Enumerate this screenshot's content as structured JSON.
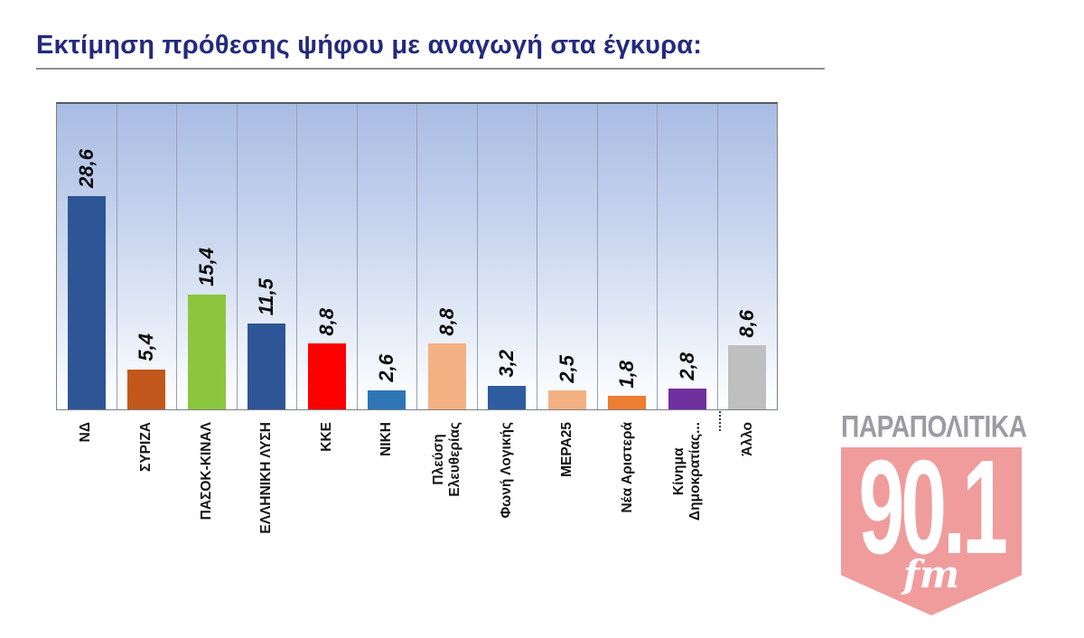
{
  "header": {
    "title": "Εκτίμηση πρόθεσης ψήφου με αναγωγή στα έγκυρα:",
    "title_color": "#232a7d",
    "underline_color": "#8f8f8f"
  },
  "chart_data": {
    "type": "bar",
    "title": "Εκτίμηση πρόθεσης ψήφου με αναγωγή στα έγκυρα:",
    "categories": [
      "ΝΔ",
      "ΣΥΡΙΖΑ",
      "ΠΑΣΟΚ-ΚΙΝΑΛ",
      "ΕΛΛΗΝΙΚΗ ΛΥΣΗ",
      "ΚΚΕ",
      "ΝΙΚΗ",
      "Πλεύση\nΕλευθερίας",
      "Φωνή Λογικής",
      "ΜΕΡΑ25",
      "Νέα Αριστερά",
      "Κίνημα\nΔημοκρατίας...",
      "Άλλο"
    ],
    "values": [
      28.6,
      5.4,
      15.4,
      11.5,
      8.8,
      2.6,
      8.8,
      3.2,
      2.5,
      1.8,
      2.8,
      8.6
    ],
    "value_labels": [
      "28,6",
      "5,4",
      "15,4",
      "11,5",
      "8,8",
      "2,6",
      "8,8",
      "3,2",
      "2,5",
      "1,8",
      "2,8",
      "8,6"
    ],
    "bar_colors": [
      "#2e5596",
      "#c2571b",
      "#8cc63f",
      "#2e5596",
      "#fe0000",
      "#2e75b6",
      "#f4b183",
      "#2e5c9e",
      "#f4b183",
      "#ed7d31",
      "#7030a0",
      "#bfbfbf"
    ],
    "xlabel": "",
    "ylabel": "",
    "unit": "percent of valid votes",
    "decimal_separator": ",",
    "ylim": [
      0,
      41
    ],
    "legend": "none",
    "gridlines": "vertical category separators only",
    "plot_background": [
      "#a9bce3",
      "#ccd8ef",
      "#eef3fb",
      "#fdfeff"
    ],
    "bar_label_orientation": "rotated 90 degrees, bold italic",
    "category_label_orientation": "rotated 90 degrees, bold"
  },
  "logo": {
    "brand": "ΠΑΡΑΠΟΛΙΤΙΚΑ",
    "frequency": "90.1",
    "band": "fm",
    "brand_color": "#9b9ba3",
    "shield_color": "#f09c9c",
    "text_color": "#ffffff"
  }
}
